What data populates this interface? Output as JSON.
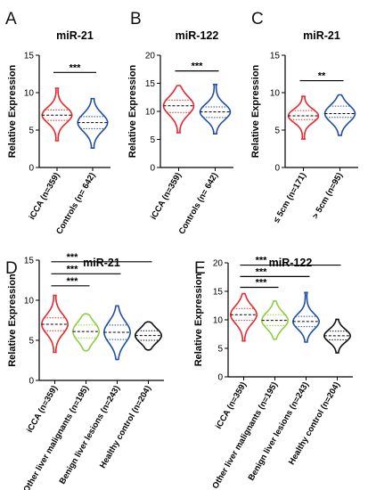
{
  "panel_labels": [
    "A",
    "B",
    "C",
    "D",
    "E"
  ],
  "chart_data": [
    {
      "type": "violin",
      "panel": "A",
      "title": "miR-21",
      "ylabel": "Relative  Expression",
      "ylim": [
        0,
        15
      ],
      "yticks": [
        0,
        5,
        10,
        15
      ],
      "categories": [
        "iCCA (n=359)",
        "Controls (n= 642)"
      ],
      "colors": [
        "#e8282b",
        "#1f4fa8"
      ],
      "distributions": [
        {
          "min": 3.6,
          "q1": 6.3,
          "median": 7.0,
          "q3": 7.7,
          "max": 10.6
        },
        {
          "min": 2.6,
          "q1": 5.2,
          "median": 6.0,
          "q3": 6.8,
          "max": 9.2
        }
      ],
      "comparisons": [
        {
          "from": 0,
          "to": 1,
          "label": "***",
          "y": 12.7
        }
      ]
    },
    {
      "type": "violin",
      "panel": "B",
      "title": "miR-122",
      "ylabel": "Relative Expression",
      "ylim": [
        0,
        20
      ],
      "yticks": [
        0,
        5,
        10,
        15,
        20
      ],
      "categories": [
        "iCCA (n=359)",
        "Controls (n= 642)"
      ],
      "colors": [
        "#e8282b",
        "#1f4fa8"
      ],
      "distributions": [
        {
          "min": 6.2,
          "q1": 9.8,
          "median": 11.0,
          "q3": 12.0,
          "max": 14.6
        },
        {
          "min": 6.0,
          "q1": 8.9,
          "median": 9.9,
          "q3": 10.8,
          "max": 14.8
        }
      ],
      "comparisons": [
        {
          "from": 0,
          "to": 1,
          "label": "***",
          "y": 17.2
        }
      ]
    },
    {
      "type": "violin",
      "panel": "C",
      "title": "miR-21",
      "ylabel": "Relative Expression",
      "ylim": [
        0,
        15
      ],
      "yticks": [
        0,
        5,
        10,
        15
      ],
      "categories": [
        "≤ 5cm (n=171)",
        "> 5cm (n=95)"
      ],
      "colors": [
        "#e8282b",
        "#1f4fa8"
      ],
      "distributions": [
        {
          "min": 3.8,
          "q1": 6.4,
          "median": 6.9,
          "q3": 7.6,
          "max": 9.5
        },
        {
          "min": 4.3,
          "q1": 6.7,
          "median": 7.2,
          "q3": 8.2,
          "max": 9.7
        }
      ],
      "comparisons": [
        {
          "from": 0,
          "to": 1,
          "label": "**",
          "y": 11.6
        }
      ]
    },
    {
      "type": "violin",
      "panel": "D",
      "title": "miR-21",
      "ylabel": "Relative  Expression",
      "ylim": [
        0,
        15
      ],
      "yticks": [
        0,
        5,
        10,
        15
      ],
      "categories": [
        "iCCA (n=359)",
        "Other liver malignants (n=195)",
        "Benign liver lesions (n=243)",
        "Healthy control (n=204)"
      ],
      "colors": [
        "#e8282b",
        "#8ccf3c",
        "#1f4fa8",
        "#111111"
      ],
      "distributions": [
        {
          "min": 3.5,
          "q1": 6.2,
          "median": 7.0,
          "q3": 7.8,
          "max": 10.6
        },
        {
          "min": 3.7,
          "q1": 5.3,
          "median": 6.1,
          "q3": 6.9,
          "max": 8.3
        },
        {
          "min": 2.6,
          "q1": 5.1,
          "median": 6.0,
          "q3": 6.9,
          "max": 9.3
        },
        {
          "min": 3.8,
          "q1": 5.0,
          "median": 5.6,
          "q3": 6.2,
          "max": 7.3
        }
      ],
      "comparisons": [
        {
          "from": 0,
          "to": 1,
          "label": "***",
          "y": 11.8
        },
        {
          "from": 0,
          "to": 2,
          "label": "***",
          "y": 13.3
        },
        {
          "from": 0,
          "to": 3,
          "label": "***",
          "y": 14.8
        }
      ]
    },
    {
      "type": "violin",
      "panel": "E",
      "title": "miR-122",
      "ylabel": "Relative  Expression",
      "ylim": [
        0,
        20
      ],
      "yticks": [
        0,
        5,
        10,
        15,
        20
      ],
      "categories": [
        "iCCA (n=359)",
        "Other liver malignants (n=195)",
        "Benign liver lesions (n=243)",
        "Healthy control (n=204)"
      ],
      "colors": [
        "#e8282b",
        "#8ccf3c",
        "#1f4fa8",
        "#111111"
      ],
      "distributions": [
        {
          "min": 6.3,
          "q1": 9.9,
          "median": 10.9,
          "q3": 12.0,
          "max": 14.6
        },
        {
          "min": 6.6,
          "q1": 9.0,
          "median": 9.9,
          "q3": 10.9,
          "max": 13.3
        },
        {
          "min": 6.1,
          "q1": 8.8,
          "median": 9.7,
          "q3": 10.6,
          "max": 14.8
        },
        {
          "min": 4.2,
          "q1": 6.5,
          "median": 7.2,
          "q3": 8.0,
          "max": 10.1
        }
      ],
      "comparisons": [
        {
          "from": 0,
          "to": 1,
          "label": "***",
          "y": 15.7
        },
        {
          "from": 0,
          "to": 2,
          "label": "***",
          "y": 17.6
        },
        {
          "from": 0,
          "to": 3,
          "label": "***",
          "y": 19.6
        }
      ]
    }
  ]
}
